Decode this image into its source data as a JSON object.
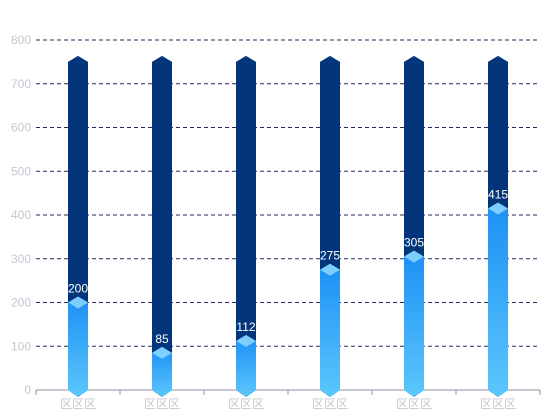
{
  "colors": {
    "background": "#ffffff",
    "grid": "#1d2d5c",
    "axis_text": "#c3c7d1",
    "track": "#03357a",
    "fill_top": "#1c8ff5",
    "fill_bottom": "#5bc7fb",
    "cap": "#8ed8ff",
    "label": "#ffffff"
  },
  "chart_data": {
    "type": "bar",
    "categories": [
      "区区区",
      "区区区",
      "区区区",
      "区区区",
      "区区区",
      "区区区"
    ],
    "values": [
      200,
      85,
      112,
      275,
      305,
      415
    ],
    "background_values": [
      750,
      750,
      750,
      750,
      750,
      750
    ],
    "ylim": [
      0,
      800
    ],
    "y_ticks": [
      0,
      100,
      200,
      300,
      400,
      500,
      600,
      700,
      800
    ],
    "grid": true,
    "title": "",
    "xlabel": "",
    "ylabel": ""
  }
}
